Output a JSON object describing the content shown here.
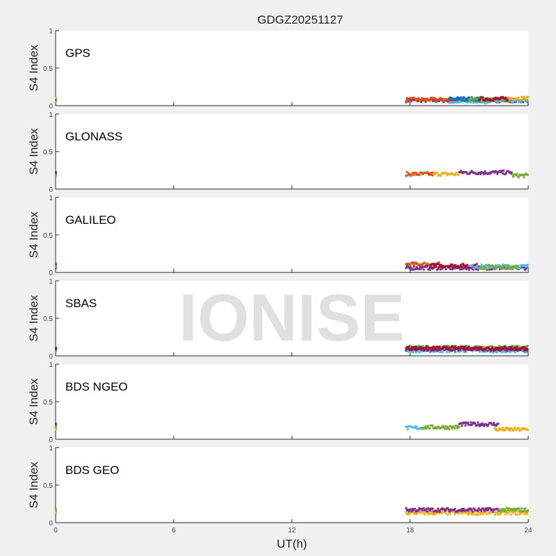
{
  "chart_data": {
    "type": "scatter",
    "title": "GDGZ20251127",
    "xlabel": "UT(h)",
    "ylabel": "S4 Index",
    "xlim": [
      0,
      24
    ],
    "ylim": [
      0,
      1
    ],
    "xticks": [
      "0",
      "6",
      "12",
      "18",
      "24"
    ],
    "yticks": [
      "0",
      "0.5",
      "1"
    ],
    "watermark": "IONISE",
    "colors": [
      "#0072BD",
      "#D95319",
      "#EDB120",
      "#7E2F8E",
      "#77AC30",
      "#4DBEEE",
      "#A2142F"
    ],
    "panels": [
      {
        "label": "GPS",
        "series": [
          {
            "color": "#7E2F8E",
            "x": [
              17.8,
              24
            ],
            "s4": 0.07
          },
          {
            "color": "#D95319",
            "x": [
              17.8,
              21
            ],
            "s4": 0.08
          },
          {
            "color": "#4DBEEE",
            "x": [
              20,
              24
            ],
            "s4": 0.06
          },
          {
            "color": "#0072BD",
            "x": [
              20,
              21.5
            ],
            "s4": 0.09
          },
          {
            "color": "#77AC30",
            "x": [
              21,
              23
            ],
            "s4": 0.08
          },
          {
            "color": "#A2142F",
            "x": [
              21.5,
              23
            ],
            "s4": 0.09
          },
          {
            "color": "#EDB120",
            "x": [
              23,
              24
            ],
            "s4": 0.1
          }
        ]
      },
      {
        "label": "GLONASS",
        "series": [
          {
            "color": "#D95319",
            "x": [
              17.8,
              19.2
            ],
            "s4": 0.2
          },
          {
            "color": "#EDB120",
            "x": [
              19.2,
              20.5
            ],
            "s4": 0.2
          },
          {
            "color": "#7E2F8E",
            "x": [
              20.5,
              23.2
            ],
            "s4": 0.22
          },
          {
            "color": "#77AC30",
            "x": [
              23.2,
              24
            ],
            "s4": 0.18
          }
        ]
      },
      {
        "label": "GALILEO",
        "series": [
          {
            "color": "#D95319",
            "x": [
              17.8,
              19.5
            ],
            "s4": 0.11
          },
          {
            "color": "#7E2F8E",
            "x": [
              17.8,
              24
            ],
            "s4": 0.06
          },
          {
            "color": "#A2142F",
            "x": [
              19,
              21.5
            ],
            "s4": 0.09
          },
          {
            "color": "#4DBEEE",
            "x": [
              21,
              24
            ],
            "s4": 0.08
          },
          {
            "color": "#77AC30",
            "x": [
              21.5,
              23.5
            ],
            "s4": 0.07
          }
        ]
      },
      {
        "label": "SBAS",
        "series": [
          {
            "color": "#4DBEEE",
            "x": [
              17.8,
              24
            ],
            "s4": 0.07
          },
          {
            "color": "#77AC30",
            "x": [
              17.8,
              24
            ],
            "s4": 0.11
          },
          {
            "color": "#7E2F8E",
            "x": [
              17.8,
              24
            ],
            "s4": 0.09
          },
          {
            "color": "#A2142F",
            "x": [
              17.8,
              24
            ],
            "s4": 0.1
          }
        ]
      },
      {
        "label": "BDS NGEO",
        "series": [
          {
            "color": "#4DBEEE",
            "x": [
              17.8,
              18.6
            ],
            "s4": 0.15
          },
          {
            "color": "#77AC30",
            "x": [
              18.6,
              20.5
            ],
            "s4": 0.16
          },
          {
            "color": "#7E2F8E",
            "x": [
              20.5,
              22.5
            ],
            "s4": 0.2
          },
          {
            "color": "#EDB120",
            "x": [
              22.3,
              24
            ],
            "s4": 0.13
          }
        ]
      },
      {
        "label": "BDS GEO",
        "series": [
          {
            "color": "#EDB120",
            "x": [
              17.8,
              24
            ],
            "s4": 0.13
          },
          {
            "color": "#7E2F8E",
            "x": [
              17.8,
              22.5
            ],
            "s4": 0.17
          },
          {
            "color": "#77AC30",
            "x": [
              22.5,
              24
            ],
            "s4": 0.17
          }
        ]
      }
    ]
  }
}
